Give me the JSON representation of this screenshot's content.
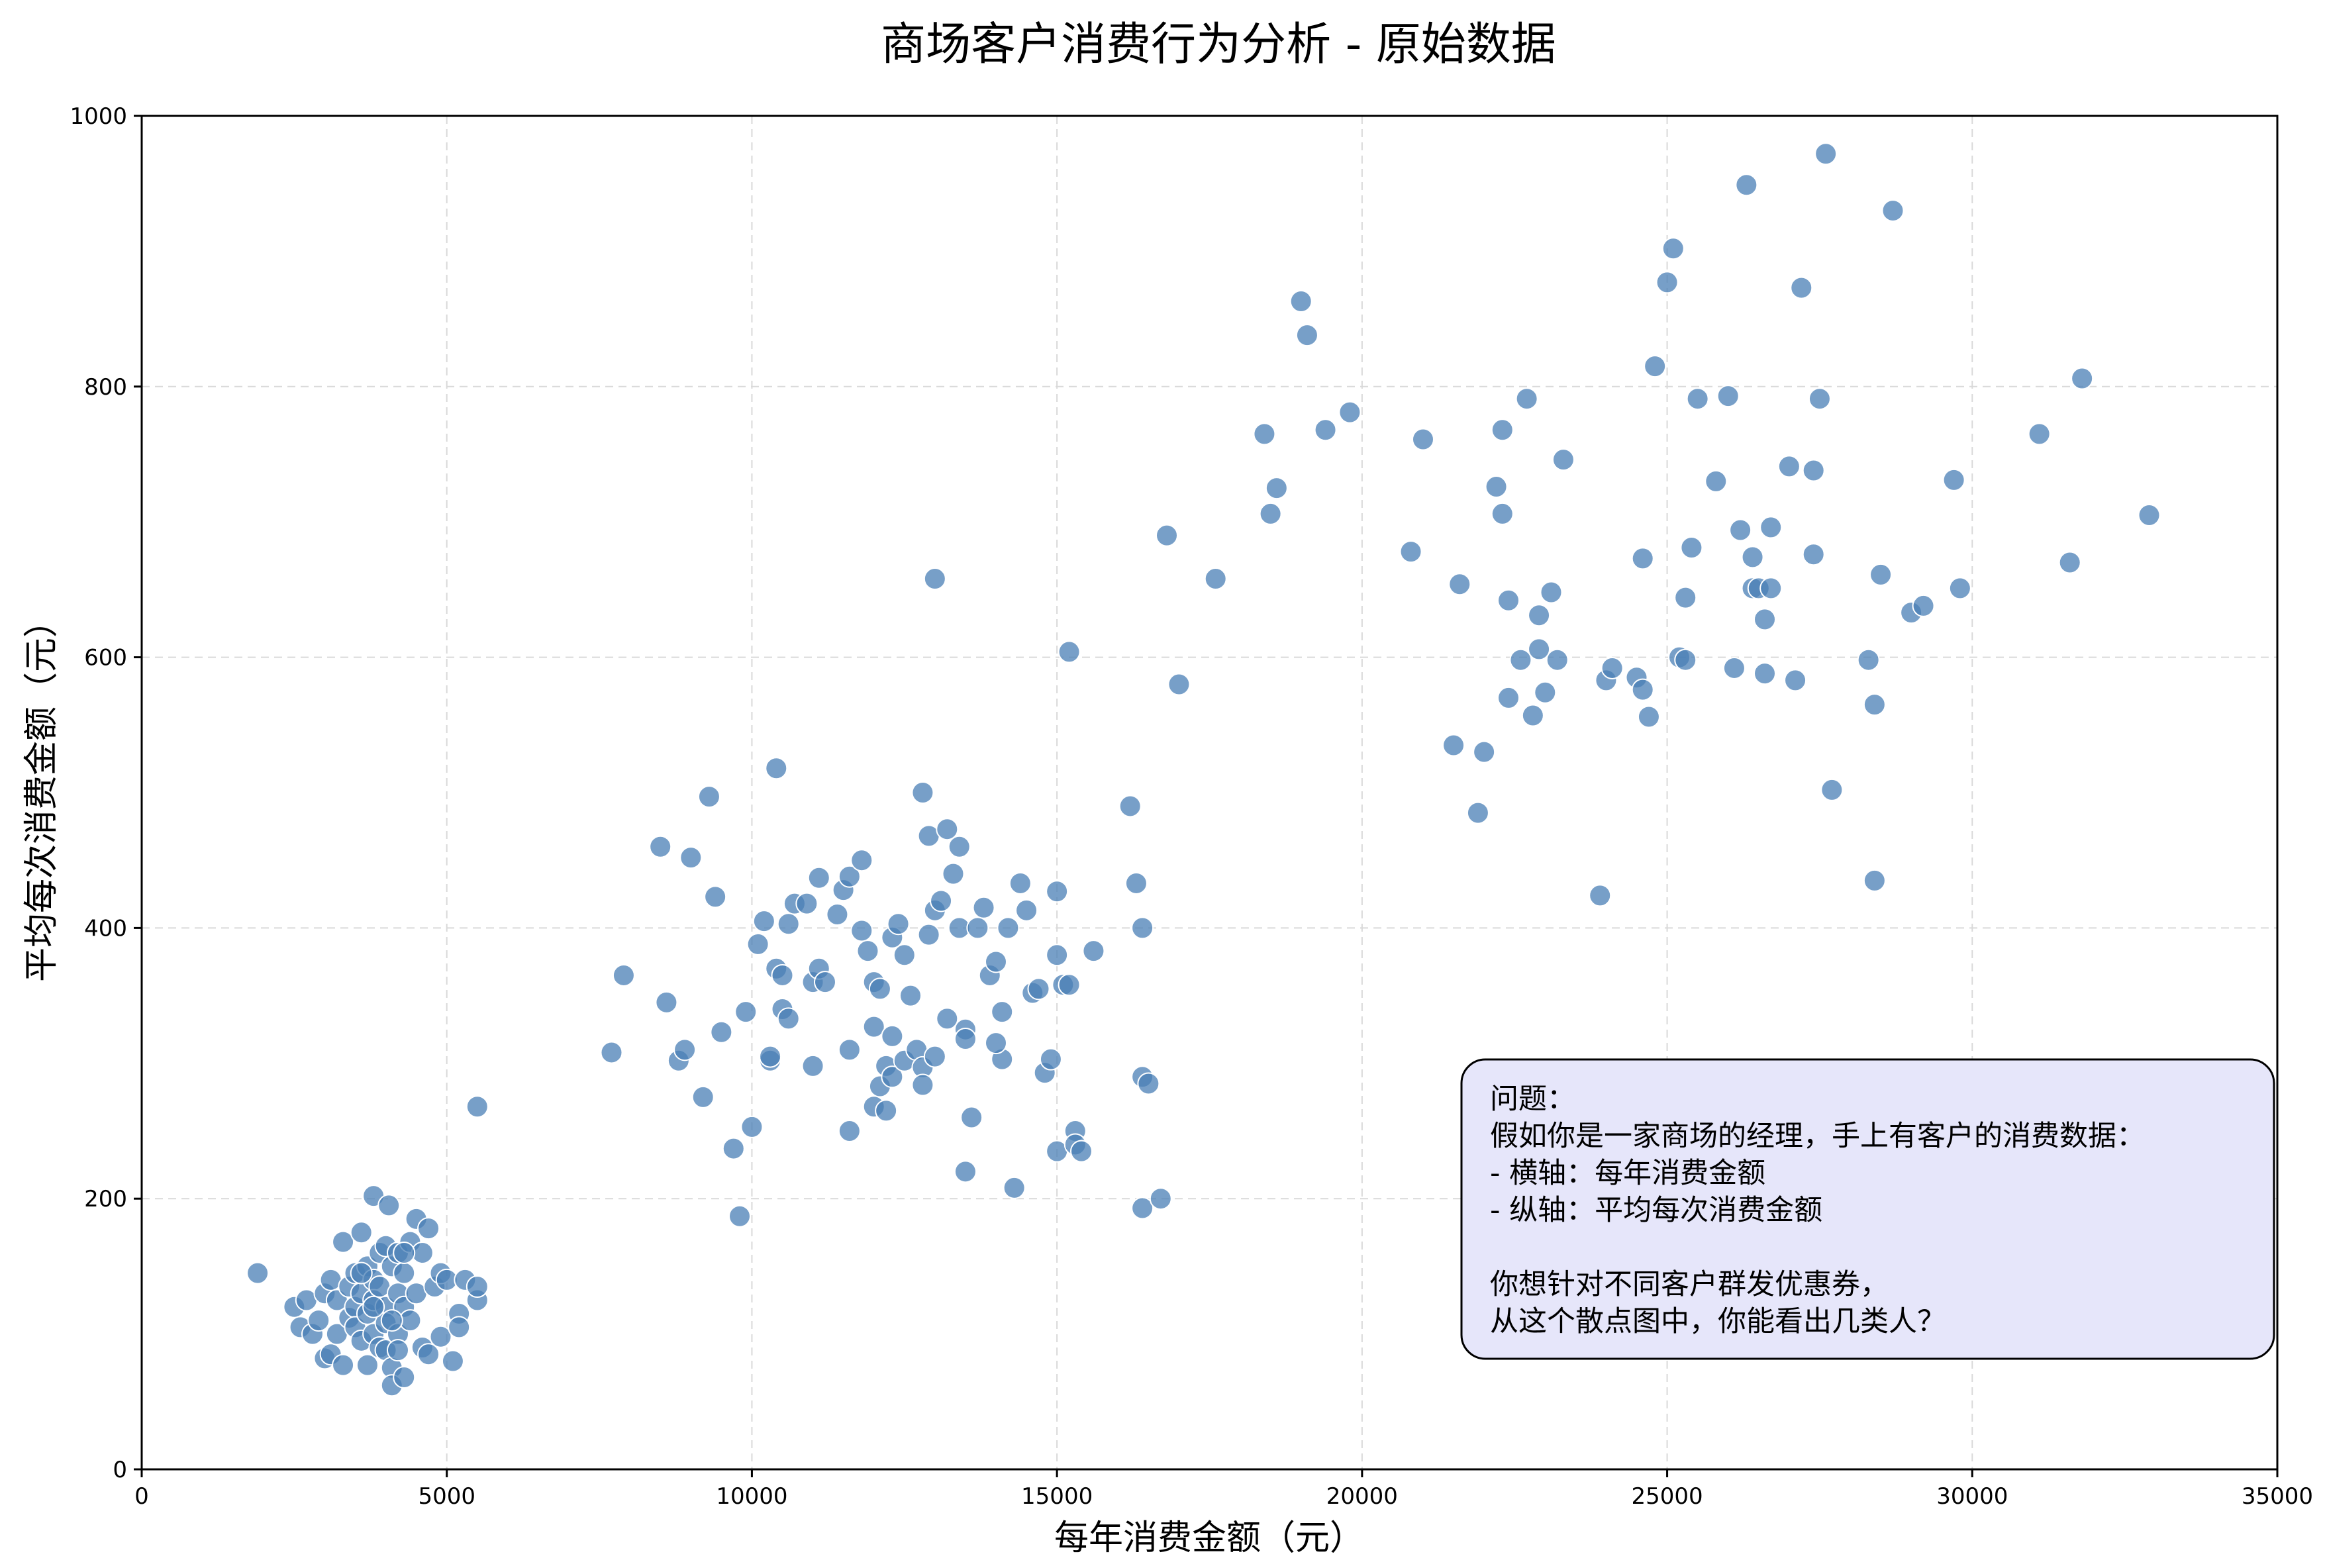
{
  "chart_data": {
    "type": "scatter",
    "title": "商场客户消费行为分析 - 原始数据",
    "xlabel": "每年消费金额（元）",
    "ylabel": "平均每次消费金额（元）",
    "xlim": [
      0,
      35000
    ],
    "ylim": [
      0,
      1000
    ],
    "xticks": [
      0,
      5000,
      10000,
      15000,
      20000,
      25000,
      30000,
      35000
    ],
    "yticks": [
      0,
      200,
      400,
      600,
      800,
      1000
    ],
    "grid": true,
    "marker_color": "#4a7fb5",
    "marker_edge_color": "#ffffff",
    "annotation": {
      "lines": [
        "问题：",
        "假如你是一家商场的经理，手上有客户的消费数据：",
        "- 横轴：每年消费金额",
        "- 纵轴：平均每次消费金额",
        "",
        "你想针对不同客户群发优惠券，",
        "从这个散点图中，你能看出几类人？"
      ],
      "background": "#e6e6fa",
      "position": "bottom-right"
    },
    "points": [
      [
        1900,
        145
      ],
      [
        2500,
        120
      ],
      [
        2600,
        105
      ],
      [
        2700,
        125
      ],
      [
        2800,
        100
      ],
      [
        2900,
        110
      ],
      [
        3000,
        130
      ],
      [
        3000,
        82
      ],
      [
        3100,
        140
      ],
      [
        3100,
        85
      ],
      [
        3200,
        100
      ],
      [
        3200,
        125
      ],
      [
        3300,
        168
      ],
      [
        3300,
        77
      ],
      [
        3400,
        112
      ],
      [
        3400,
        135
      ],
      [
        3500,
        145
      ],
      [
        3500,
        120
      ],
      [
        3500,
        105
      ],
      [
        3600,
        175
      ],
      [
        3600,
        130
      ],
      [
        3600,
        95
      ],
      [
        3700,
        150
      ],
      [
        3700,
        115
      ],
      [
        3700,
        77
      ],
      [
        3800,
        140
      ],
      [
        3800,
        100
      ],
      [
        3800,
        125
      ],
      [
        3800,
        202
      ],
      [
        3900,
        160
      ],
      [
        3900,
        90
      ],
      [
        3900,
        135
      ],
      [
        4000,
        165
      ],
      [
        4000,
        120
      ],
      [
        4000,
        108
      ],
      [
        4000,
        88
      ],
      [
        4050,
        195
      ],
      [
        4100,
        150
      ],
      [
        4100,
        75
      ],
      [
        4100,
        62
      ],
      [
        4200,
        160
      ],
      [
        4200,
        130
      ],
      [
        4200,
        100
      ],
      [
        4300,
        145
      ],
      [
        4300,
        120
      ],
      [
        4300,
        68
      ],
      [
        4400,
        110
      ],
      [
        4400,
        168
      ],
      [
        4500,
        130
      ],
      [
        4500,
        185
      ],
      [
        4600,
        90
      ],
      [
        4600,
        160
      ],
      [
        4700,
        178
      ],
      [
        4700,
        85
      ],
      [
        4800,
        135
      ],
      [
        4900,
        145
      ],
      [
        4900,
        98
      ],
      [
        5000,
        140
      ],
      [
        5100,
        80
      ],
      [
        5200,
        115
      ],
      [
        5200,
        105
      ],
      [
        5300,
        140
      ],
      [
        5500,
        125
      ],
      [
        5500,
        135
      ],
      [
        5500,
        268
      ],
      [
        4100,
        110
      ],
      [
        3600,
        145
      ],
      [
        3800,
        120
      ],
      [
        4300,
        160
      ],
      [
        4200,
        88
      ],
      [
        7700,
        308
      ],
      [
        7900,
        365
      ],
      [
        8500,
        460
      ],
      [
        8600,
        345
      ],
      [
        8800,
        302
      ],
      [
        8900,
        310
      ],
      [
        9000,
        452
      ],
      [
        9200,
        275
      ],
      [
        9300,
        497
      ],
      [
        9400,
        423
      ],
      [
        9500,
        323
      ],
      [
        9700,
        237
      ],
      [
        9800,
        187
      ],
      [
        9900,
        338
      ],
      [
        10000,
        253
      ],
      [
        10100,
        388
      ],
      [
        10200,
        405
      ],
      [
        10300,
        302
      ],
      [
        10300,
        305
      ],
      [
        10400,
        518
      ],
      [
        10400,
        370
      ],
      [
        10500,
        365
      ],
      [
        10500,
        340
      ],
      [
        10600,
        333
      ],
      [
        10600,
        403
      ],
      [
        10700,
        418
      ],
      [
        10900,
        418
      ],
      [
        11000,
        360
      ],
      [
        11000,
        298
      ],
      [
        11100,
        370
      ],
      [
        11100,
        437
      ],
      [
        11200,
        360
      ],
      [
        11400,
        410
      ],
      [
        11500,
        428
      ],
      [
        11600,
        438
      ],
      [
        11600,
        310
      ],
      [
        11600,
        250
      ],
      [
        11800,
        398
      ],
      [
        11800,
        450
      ],
      [
        11900,
        383
      ],
      [
        12000,
        360
      ],
      [
        12000,
        327
      ],
      [
        12000,
        268
      ],
      [
        12100,
        355
      ],
      [
        12100,
        283
      ],
      [
        12200,
        298
      ],
      [
        12200,
        265
      ],
      [
        12300,
        320
      ],
      [
        12300,
        290
      ],
      [
        12300,
        393
      ],
      [
        12400,
        403
      ],
      [
        12500,
        302
      ],
      [
        12600,
        350
      ],
      [
        12700,
        310
      ],
      [
        12800,
        297
      ],
      [
        12800,
        500
      ],
      [
        12800,
        284
      ],
      [
        12900,
        468
      ],
      [
        12900,
        395
      ],
      [
        13000,
        413
      ],
      [
        13000,
        305
      ],
      [
        13100,
        420
      ],
      [
        13200,
        473
      ],
      [
        13200,
        333
      ],
      [
        13300,
        440
      ],
      [
        13400,
        400
      ],
      [
        13400,
        460
      ],
      [
        13500,
        325
      ],
      [
        13500,
        318
      ],
      [
        13500,
        220
      ],
      [
        13600,
        260
      ],
      [
        13700,
        400
      ],
      [
        13800,
        415
      ],
      [
        13900,
        365
      ],
      [
        14000,
        375
      ],
      [
        14100,
        303
      ],
      [
        14100,
        338
      ],
      [
        14200,
        400
      ],
      [
        14300,
        208
      ],
      [
        14400,
        433
      ],
      [
        14500,
        413
      ],
      [
        14600,
        352
      ],
      [
        14700,
        355
      ],
      [
        14800,
        293
      ],
      [
        14900,
        303
      ],
      [
        15000,
        427
      ],
      [
        15000,
        235
      ],
      [
        15100,
        358
      ],
      [
        15200,
        604
      ],
      [
        15200,
        358
      ],
      [
        15300,
        250
      ],
      [
        15300,
        240
      ],
      [
        15400,
        235
      ],
      [
        15600,
        383
      ],
      [
        16200,
        490
      ],
      [
        16300,
        433
      ],
      [
        16400,
        400
      ],
      [
        16400,
        290
      ],
      [
        16400,
        193
      ],
      [
        16500,
        285
      ],
      [
        16700,
        200
      ],
      [
        13000,
        658
      ],
      [
        15000,
        380
      ],
      [
        12500,
        380
      ],
      [
        14000,
        315
      ],
      [
        16800,
        690
      ],
      [
        17000,
        580
      ],
      [
        17600,
        658
      ],
      [
        18400,
        765
      ],
      [
        18500,
        706
      ],
      [
        18600,
        725
      ],
      [
        19000,
        863
      ],
      [
        19100,
        838
      ],
      [
        19400,
        768
      ],
      [
        19800,
        781
      ],
      [
        20800,
        678
      ],
      [
        21000,
        761
      ],
      [
        21500,
        535
      ],
      [
        21600,
        654
      ],
      [
        21900,
        485
      ],
      [
        22000,
        530
      ],
      [
        22200,
        726
      ],
      [
        22300,
        768
      ],
      [
        22300,
        706
      ],
      [
        22400,
        642
      ],
      [
        22400,
        570
      ],
      [
        22600,
        598
      ],
      [
        22700,
        791
      ],
      [
        22800,
        557
      ],
      [
        22900,
        631
      ],
      [
        22900,
        606
      ],
      [
        23000,
        574
      ],
      [
        23100,
        648
      ],
      [
        23200,
        598
      ],
      [
        23300,
        746
      ],
      [
        23900,
        424
      ],
      [
        24000,
        583
      ],
      [
        24100,
        592
      ],
      [
        24500,
        585
      ],
      [
        24600,
        673
      ],
      [
        24600,
        576
      ],
      [
        24700,
        556
      ],
      [
        24800,
        815
      ],
      [
        25000,
        877
      ],
      [
        25100,
        902
      ],
      [
        25200,
        600
      ],
      [
        25300,
        644
      ],
      [
        25300,
        598
      ],
      [
        25400,
        681
      ],
      [
        25500,
        791
      ],
      [
        25800,
        730
      ],
      [
        26000,
        793
      ],
      [
        26100,
        592
      ],
      [
        26200,
        694
      ],
      [
        26300,
        949
      ],
      [
        26400,
        674
      ],
      [
        26400,
        651
      ],
      [
        26500,
        651
      ],
      [
        26600,
        588
      ],
      [
        26600,
        628
      ],
      [
        26700,
        696
      ],
      [
        26700,
        651
      ],
      [
        27000,
        741
      ],
      [
        27100,
        583
      ],
      [
        27200,
        873
      ],
      [
        27400,
        738
      ],
      [
        27400,
        676
      ],
      [
        27500,
        791
      ],
      [
        27600,
        972
      ],
      [
        27700,
        502
      ],
      [
        28300,
        598
      ],
      [
        28400,
        565
      ],
      [
        28400,
        435
      ],
      [
        28500,
        661
      ],
      [
        28700,
        930
      ],
      [
        29000,
        633
      ],
      [
        29200,
        638
      ],
      [
        29700,
        731
      ],
      [
        29800,
        651
      ],
      [
        31100,
        765
      ],
      [
        31600,
        670
      ],
      [
        31800,
        806
      ],
      [
        32900,
        705
      ]
    ]
  }
}
